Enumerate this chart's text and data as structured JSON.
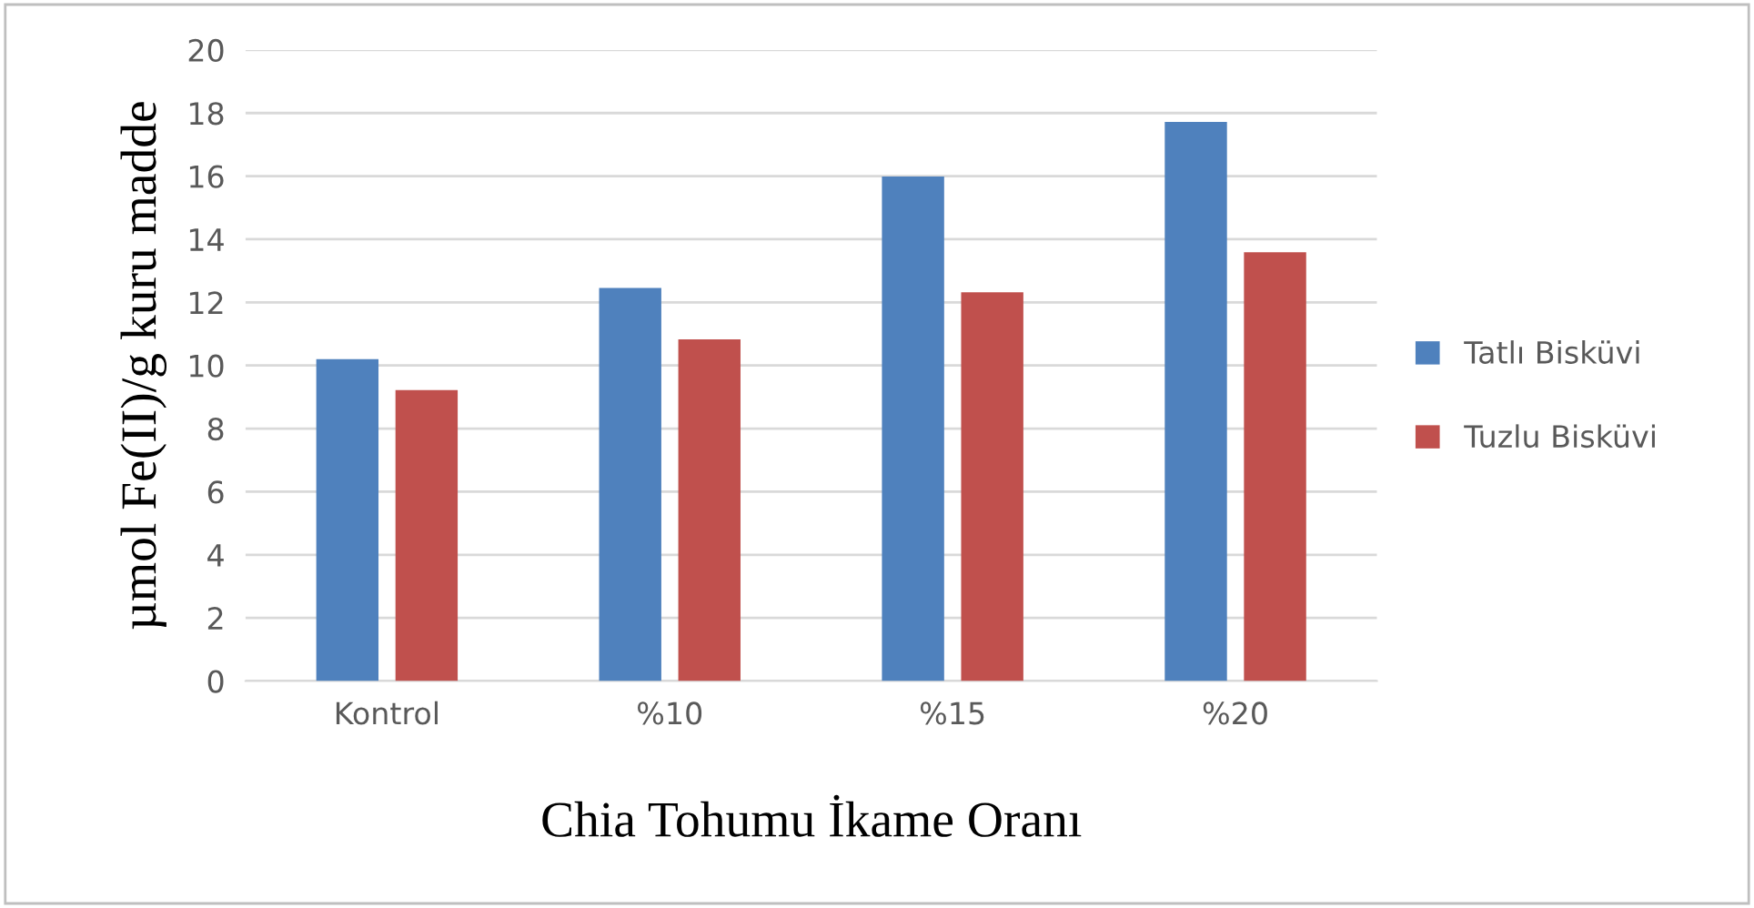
{
  "chart_data": {
    "type": "bar",
    "xlabel": "Chia Tohumu İkame Oranı",
    "ylabel": "µmol Fe(II)/g kuru madde",
    "categories": [
      "Kontrol",
      "%10",
      "%15",
      "%20"
    ],
    "series": [
      {
        "name": "Tatlı Bisküvi",
        "color": "#4f81bd",
        "values": [
          10.2,
          12.46,
          15.99,
          17.72
        ]
      },
      {
        "name": "Tuzlu Bisküvi",
        "color": "#c0504d",
        "values": [
          9.22,
          10.83,
          12.32,
          13.59
        ]
      }
    ],
    "ylim": [
      0,
      20
    ],
    "yticks": [
      0,
      2,
      4,
      6,
      8,
      10,
      12,
      14,
      16,
      18,
      20
    ],
    "grid": "y",
    "legend": "right"
  }
}
